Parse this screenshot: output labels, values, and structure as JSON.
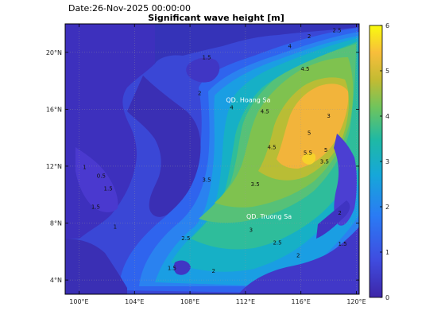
{
  "date_label": "Date:26-Nov-2025 00:00:00",
  "title": "Significant wave height [m]",
  "map": {
    "lon_range": [
      99,
      120.2
    ],
    "lat_range": [
      3,
      22
    ],
    "lon_ticks": [
      {
        "value": 100,
        "label": "100°E"
      },
      {
        "value": 104,
        "label": "104°E"
      },
      {
        "value": 108,
        "label": "108°E"
      },
      {
        "value": 112,
        "label": "112°E"
      },
      {
        "value": 116,
        "label": "116°E"
      },
      {
        "value": 120,
        "label": "120°E"
      }
    ],
    "lat_ticks": [
      {
        "value": 4,
        "label": "4°N"
      },
      {
        "value": 8,
        "label": "8°N"
      },
      {
        "value": 12,
        "label": "12°N"
      },
      {
        "value": 16,
        "label": "16°N"
      },
      {
        "value": 20,
        "label": "20°N"
      }
    ],
    "place_labels": [
      {
        "text": "QD. Hoang Sa",
        "lon": 112.2,
        "lat": 16.5
      },
      {
        "text": "QD. Truong Sa",
        "lon": 113.7,
        "lat": 8.3
      }
    ],
    "contour_labels": [
      {
        "text": "4",
        "lon": 115.2,
        "lat": 20.3
      },
      {
        "text": "4.5",
        "lon": 116.3,
        "lat": 18.7
      },
      {
        "text": "4",
        "lon": 111.0,
        "lat": 16.0
      },
      {
        "text": "4.5",
        "lon": 113.4,
        "lat": 15.7
      },
      {
        "text": "5",
        "lon": 116.6,
        "lat": 14.2
      },
      {
        "text": "5.5",
        "lon": 116.5,
        "lat": 12.8
      },
      {
        "text": "5",
        "lon": 117.8,
        "lat": 13.0
      },
      {
        "text": "4.5",
        "lon": 113.9,
        "lat": 13.2
      },
      {
        "text": "3.5",
        "lon": 117.7,
        "lat": 12.2
      },
      {
        "text": "3",
        "lon": 118.0,
        "lat": 15.4
      },
      {
        "text": "2",
        "lon": 116.6,
        "lat": 21.0
      },
      {
        "text": "2.5",
        "lon": 118.6,
        "lat": 21.4
      },
      {
        "text": "1.5",
        "lon": 109.2,
        "lat": 19.5
      },
      {
        "text": "2",
        "lon": 108.7,
        "lat": 17.0
      },
      {
        "text": "3.5",
        "lon": 109.2,
        "lat": 10.9
      },
      {
        "text": "3.5",
        "lon": 112.7,
        "lat": 10.6
      },
      {
        "text": "3",
        "lon": 112.4,
        "lat": 7.4
      },
      {
        "text": "2.5",
        "lon": 107.7,
        "lat": 6.8
      },
      {
        "text": "2",
        "lon": 109.7,
        "lat": 4.5
      },
      {
        "text": "2.5",
        "lon": 114.3,
        "lat": 6.5
      },
      {
        "text": "2",
        "lon": 115.8,
        "lat": 5.6
      },
      {
        "text": "1.5",
        "lon": 101.2,
        "lat": 9.0
      },
      {
        "text": "1.5",
        "lon": 106.7,
        "lat": 4.7
      },
      {
        "text": "1",
        "lon": 102.6,
        "lat": 7.6
      },
      {
        "text": "1",
        "lon": 100.4,
        "lat": 11.8
      },
      {
        "text": "0.5",
        "lon": 101.6,
        "lat": 11.2
      },
      {
        "text": "1.5",
        "lon": 102.1,
        "lat": 10.3
      },
      {
        "text": "2",
        "lon": 118.8,
        "lat": 8.6
      },
      {
        "text": "1.5",
        "lon": 119.0,
        "lat": 6.4
      }
    ]
  },
  "colorbar": {
    "range": [
      0,
      6
    ],
    "ticks": [
      {
        "value": 0,
        "label": "0"
      },
      {
        "value": 1,
        "label": "1"
      },
      {
        "value": 2,
        "label": "2"
      },
      {
        "value": 3,
        "label": "3"
      },
      {
        "value": 4,
        "label": "4"
      },
      {
        "value": 5,
        "label": "5"
      },
      {
        "value": 6,
        "label": "6"
      }
    ],
    "colors": [
      "#3e26a8",
      "#2e5ae8",
      "#1b95e0",
      "#18b6b0",
      "#4ac26d",
      "#a8bf34",
      "#f1b63a",
      "#f9fb0e"
    ]
  }
}
